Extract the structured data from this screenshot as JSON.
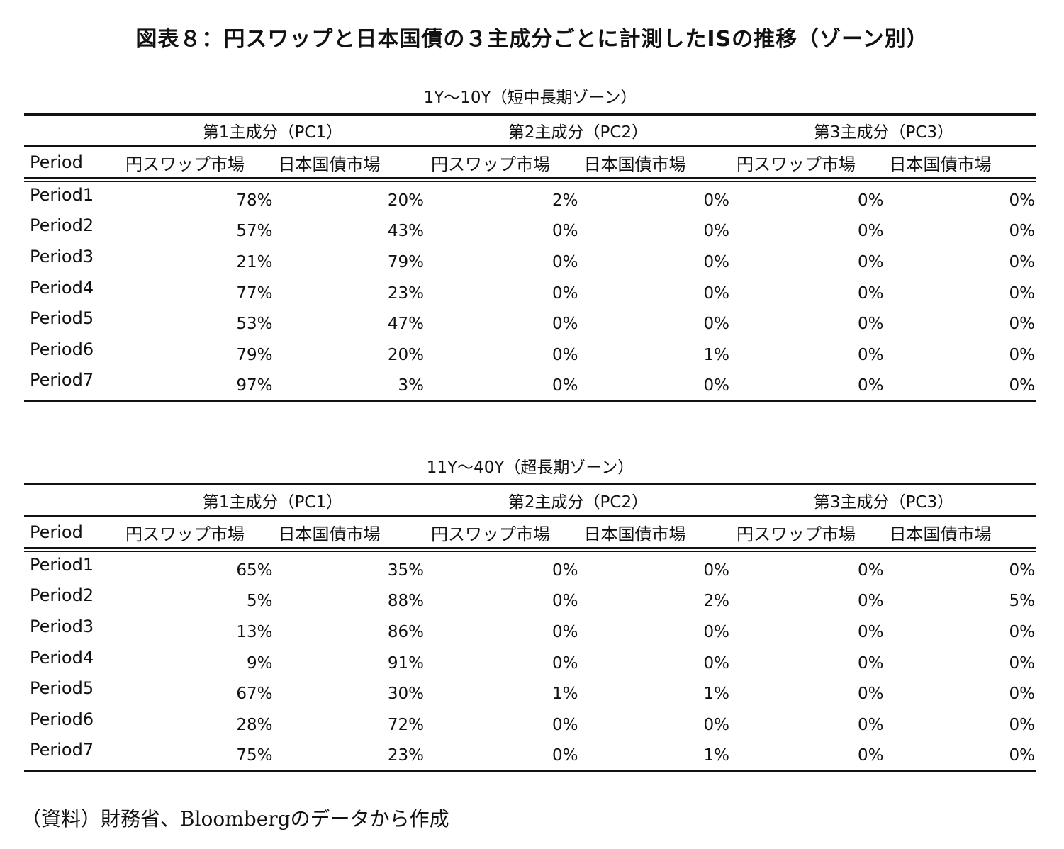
{
  "title": "図表８：円スワップと日本国債の３主成分ごとに計測したISの推移（ゾーン別）",
  "tables": [
    {
      "caption": "1Y～10Y（短中長期ゾーン）",
      "groups": [
        "第1主成分（PC1）",
        "第2主成分（PC2）",
        "第3主成分（PC3）"
      ],
      "columns": [
        "Period",
        "円スワップ市場",
        "日本国債市場",
        "円スワップ市場",
        "日本国債市場",
        "円スワップ市場",
        "日本国債市場"
      ],
      "rows": [
        [
          "Period1",
          "78%",
          "20%",
          "2%",
          "0%",
          "0%",
          "0%"
        ],
        [
          "Period2",
          "57%",
          "43%",
          "0%",
          "0%",
          "0%",
          "0%"
        ],
        [
          "Period3",
          "21%",
          "79%",
          "0%",
          "0%",
          "0%",
          "0%"
        ],
        [
          "Period4",
          "77%",
          "23%",
          "0%",
          "0%",
          "0%",
          "0%"
        ],
        [
          "Period5",
          "53%",
          "47%",
          "0%",
          "0%",
          "0%",
          "0%"
        ],
        [
          "Period6",
          "79%",
          "20%",
          "0%",
          "1%",
          "0%",
          "0%"
        ],
        [
          "Period7",
          "97%",
          "3%",
          "0%",
          "0%",
          "0%",
          "0%"
        ]
      ]
    },
    {
      "caption": "11Y～40Y（超長期ゾーン）",
      "groups": [
        "第1主成分（PC1）",
        "第2主成分（PC2）",
        "第3主成分（PC3）"
      ],
      "columns": [
        "Period",
        "円スワップ市場",
        "日本国債市場",
        "円スワップ市場",
        "日本国債市場",
        "円スワップ市場",
        "日本国債市場"
      ],
      "rows": [
        [
          "Period1",
          "65%",
          "35%",
          "0%",
          "0%",
          "0%",
          "0%"
        ],
        [
          "Period2",
          "5%",
          "88%",
          "0%",
          "2%",
          "0%",
          "5%"
        ],
        [
          "Period3",
          "13%",
          "86%",
          "0%",
          "0%",
          "0%",
          "0%"
        ],
        [
          "Period4",
          "9%",
          "91%",
          "0%",
          "0%",
          "0%",
          "0%"
        ],
        [
          "Period5",
          "67%",
          "30%",
          "1%",
          "1%",
          "0%",
          "0%"
        ],
        [
          "Period6",
          "28%",
          "72%",
          "0%",
          "0%",
          "0%",
          "0%"
        ],
        [
          "Period7",
          "75%",
          "23%",
          "0%",
          "1%",
          "0%",
          "0%"
        ]
      ]
    }
  ],
  "source": "（資料）財務省、Bloombergのデータから作成"
}
